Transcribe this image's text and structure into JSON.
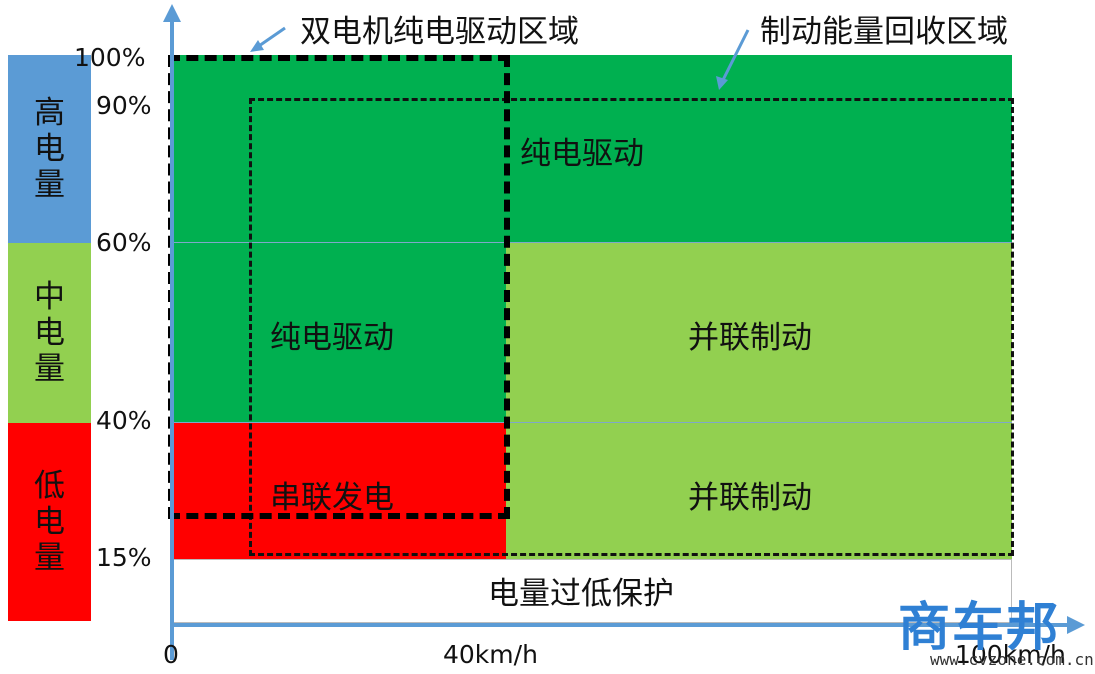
{
  "soc_bands": [
    {
      "label": "高电量",
      "color": "#5b9bd5"
    },
    {
      "label": "中电量",
      "color": "#92d050"
    },
    {
      "label": "低电量",
      "color": "#ff0000"
    }
  ],
  "y_ticks": [
    "100%",
    "90%",
    "60%",
    "40%",
    "15%"
  ],
  "x_ticks": [
    "0",
    "40km/h",
    "100km/h"
  ],
  "regions": {
    "pure_ev_high": "纯电驱动",
    "pure_ev_mid": "纯电驱动",
    "parallel_brake_mid": "并联制动",
    "series_gen": "串联发电",
    "parallel_brake_low": "并联制动",
    "low_protect": "电量过低保护"
  },
  "callouts": {
    "dual_motor": "双电机纯电驱动区域",
    "regen": "制动能量回收区域"
  },
  "colors": {
    "dark_green": "#00b050",
    "light_green": "#92d050",
    "red": "#ff0000",
    "axis": "#5b9bd5"
  },
  "watermark": {
    "logo": "商车邦",
    "url": "www.cvzone.com.cn"
  }
}
